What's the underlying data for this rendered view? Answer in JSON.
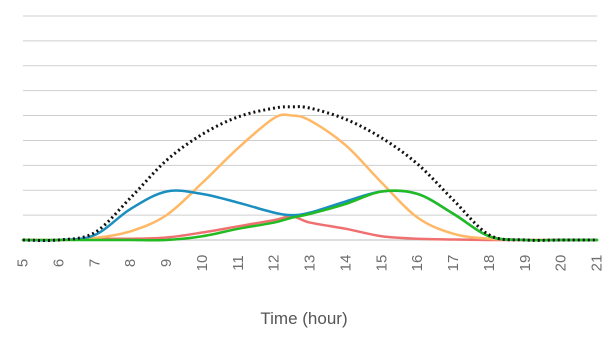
{
  "chart_data": {
    "type": "line",
    "title": "",
    "xlabel": "Time (hour)",
    "ylabel": "",
    "xlim": [
      5,
      21
    ],
    "ylim": [
      0,
      9
    ],
    "x_ticks": [
      5,
      6,
      7,
      8,
      9,
      10,
      11,
      12,
      13,
      14,
      15,
      16,
      17,
      18,
      19,
      20,
      21
    ],
    "y_gridlines": [
      1,
      2,
      3,
      4,
      5,
      6,
      7,
      8,
      9
    ],
    "grid": true,
    "legend": "none",
    "series": [
      {
        "color": "#f07070",
        "style": "solid",
        "points": [
          [
            5,
            0
          ],
          [
            6,
            0
          ],
          [
            7,
            0.05
          ],
          [
            8,
            0.05
          ],
          [
            9,
            0.1
          ],
          [
            10,
            0.3
          ],
          [
            11,
            0.55
          ],
          [
            12,
            0.8
          ],
          [
            12.5,
            0.95
          ],
          [
            13,
            0.7
          ],
          [
            14,
            0.45
          ],
          [
            15,
            0.15
          ],
          [
            16,
            0.05
          ],
          [
            17,
            0.02
          ],
          [
            18,
            0
          ],
          [
            19,
            0
          ],
          [
            20,
            0
          ],
          [
            21,
            0
          ]
        ]
      },
      {
        "color": "#ffb866",
        "style": "solid",
        "points": [
          [
            5,
            0
          ],
          [
            6,
            0
          ],
          [
            7,
            0.08
          ],
          [
            8,
            0.35
          ],
          [
            9,
            1.0
          ],
          [
            10,
            2.3
          ],
          [
            11,
            3.7
          ],
          [
            12,
            4.9
          ],
          [
            12.5,
            5.0
          ],
          [
            13,
            4.8
          ],
          [
            14,
            3.8
          ],
          [
            15,
            2.3
          ],
          [
            16,
            0.9
          ],
          [
            17,
            0.25
          ],
          [
            18,
            0.05
          ],
          [
            19,
            0
          ],
          [
            20,
            0
          ],
          [
            21,
            0
          ]
        ]
      },
      {
        "color": "#1a8fc0",
        "style": "solid",
        "points": [
          [
            5,
            0
          ],
          [
            6,
            0
          ],
          [
            7,
            0.2
          ],
          [
            8,
            1.25
          ],
          [
            9,
            1.95
          ],
          [
            10,
            1.85
          ],
          [
            11,
            1.5
          ],
          [
            12,
            1.1
          ],
          [
            12.5,
            1.0
          ],
          [
            13,
            1.1
          ],
          [
            14,
            1.55
          ],
          [
            15,
            1.95
          ],
          [
            16,
            1.85
          ],
          [
            17,
            1.05
          ],
          [
            18,
            0.15
          ],
          [
            19,
            0
          ],
          [
            20,
            0
          ],
          [
            21,
            0
          ]
        ]
      },
      {
        "color": "#22bb22",
        "style": "solid",
        "points": [
          [
            5,
            0
          ],
          [
            6,
            0
          ],
          [
            7,
            0
          ],
          [
            8,
            0
          ],
          [
            9,
            0
          ],
          [
            10,
            0.15
          ],
          [
            11,
            0.45
          ],
          [
            12,
            0.7
          ],
          [
            12.5,
            0.9
          ],
          [
            13,
            1.05
          ],
          [
            14,
            1.45
          ],
          [
            15,
            1.95
          ],
          [
            16,
            1.85
          ],
          [
            17,
            1.05
          ],
          [
            18,
            0.15
          ],
          [
            19,
            0
          ],
          [
            20,
            0
          ],
          [
            21,
            0
          ]
        ]
      },
      {
        "color": "#111111",
        "style": "dotted",
        "points": [
          [
            5,
            0
          ],
          [
            6,
            0
          ],
          [
            7,
            0.3
          ],
          [
            8,
            1.7
          ],
          [
            9,
            3.2
          ],
          [
            10,
            4.25
          ],
          [
            11,
            4.95
          ],
          [
            12,
            5.3
          ],
          [
            12.5,
            5.35
          ],
          [
            13,
            5.3
          ],
          [
            14,
            4.85
          ],
          [
            15,
            4.1
          ],
          [
            16,
            3.05
          ],
          [
            17,
            1.6
          ],
          [
            18,
            0.2
          ],
          [
            19,
            0
          ],
          [
            20,
            0
          ],
          [
            21,
            0
          ]
        ]
      }
    ]
  }
}
